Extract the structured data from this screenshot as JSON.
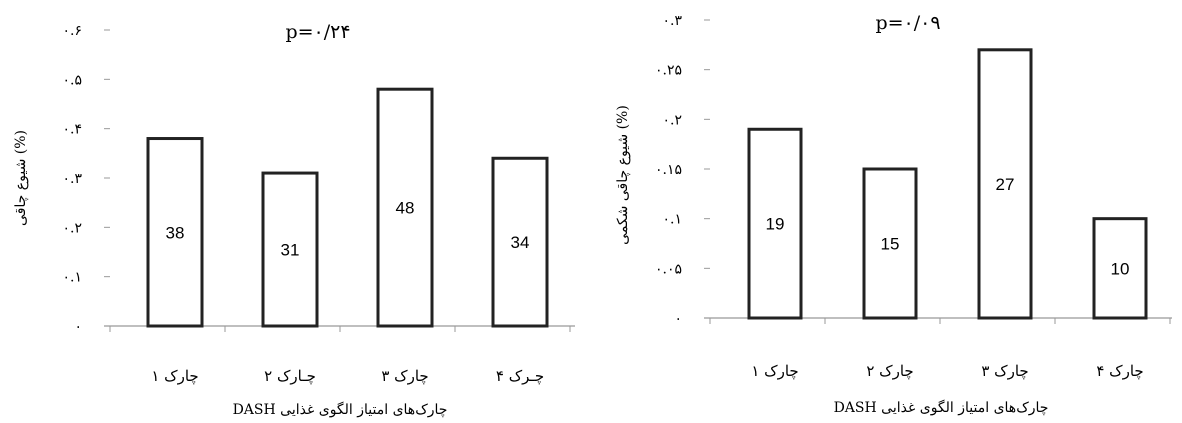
{
  "chart_data": [
    {
      "type": "bar",
      "annotation": "p=۰/۲۴",
      "ylabel": "(%) شیوع چاقی",
      "xlabel": "چارک‌های امتیاز الگوی غذایی DASH",
      "categories": [
        "چارک ۱",
        "چـارک ۲",
        "چارک ۳",
        "چـرک ۴"
      ],
      "values": [
        0.38,
        0.31,
        0.48,
        0.34
      ],
      "data_labels": [
        "38",
        "31",
        "48",
        "34"
      ],
      "ylim": [
        0,
        0.6
      ],
      "yticks": [
        0,
        0.1,
        0.2,
        0.3,
        0.4,
        0.5,
        0.6
      ],
      "ytick_labels": [
        "۰",
        "۰.۱",
        "۰.۲",
        "۰.۳",
        "۰.۴",
        "۰.۵",
        "۰.۶"
      ],
      "grid": false
    },
    {
      "type": "bar",
      "annotation": "p=۰/۰۹",
      "ylabel": "(%) شیوع چاقی شکمی",
      "xlabel": "چارک‌های امتیاز الگوی غذایی DASH",
      "categories": [
        "چارک ۱",
        "چارک ۲",
        "چارک ۳",
        "چارک ۴"
      ],
      "values": [
        0.19,
        0.15,
        0.27,
        0.1
      ],
      "data_labels": [
        "19",
        "15",
        "27",
        "10"
      ],
      "ylim": [
        0,
        0.3
      ],
      "yticks": [
        0,
        0.05,
        0.1,
        0.15,
        0.2,
        0.25,
        0.3
      ],
      "ytick_labels": [
        "۰",
        "۰.۰۵",
        "۰.۱",
        "۰.۱۵",
        "۰.۲",
        "۰.۲۵",
        "۰.۳"
      ],
      "grid": false
    }
  ]
}
